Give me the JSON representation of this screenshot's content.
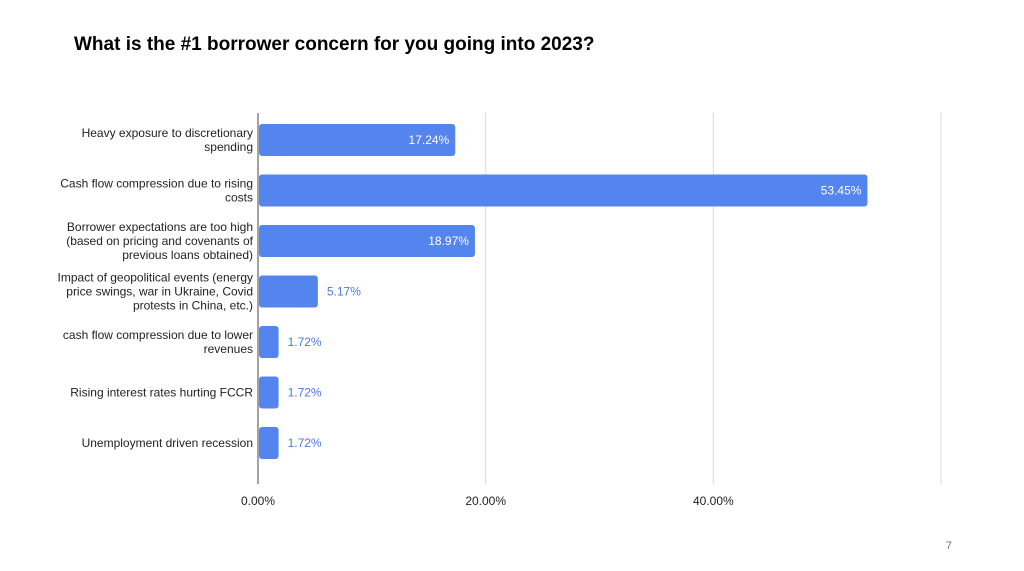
{
  "chart_data": {
    "type": "bar",
    "orientation": "horizontal",
    "title": "What is the #1 borrower concern for you going into 2023?",
    "categories": [
      "Heavy exposure to discretionary spending",
      "Cash flow compression due to rising costs",
      "Borrower expectations are too high (based on pricing and covenants of previous loans obtained)",
      "Impact of geopolitical events (energy price swings, war in Ukraine, Covid protests in China, etc.)",
      "cash flow compression due to lower revenues",
      "Rising interest rates hurting FCCR",
      "Unemployment driven recession"
    ],
    "values": [
      17.24,
      53.45,
      18.97,
      5.17,
      1.72,
      1.72,
      1.72
    ],
    "data_labels": [
      "17.24%",
      "53.45%",
      "18.97%",
      "5.17%",
      "1.72%",
      "1.72%",
      "1.72%"
    ],
    "xlim": [
      0,
      60
    ],
    "xticks": [
      0,
      20,
      40,
      60
    ],
    "xtick_labels": [
      "0.00%",
      "20.00%",
      "40.00%",
      ""
    ],
    "grid": true,
    "bar_color": "#5484ed",
    "label_inside_color": "#ffffff",
    "label_outside_color": "#4a78e0"
  },
  "page_number": "7"
}
